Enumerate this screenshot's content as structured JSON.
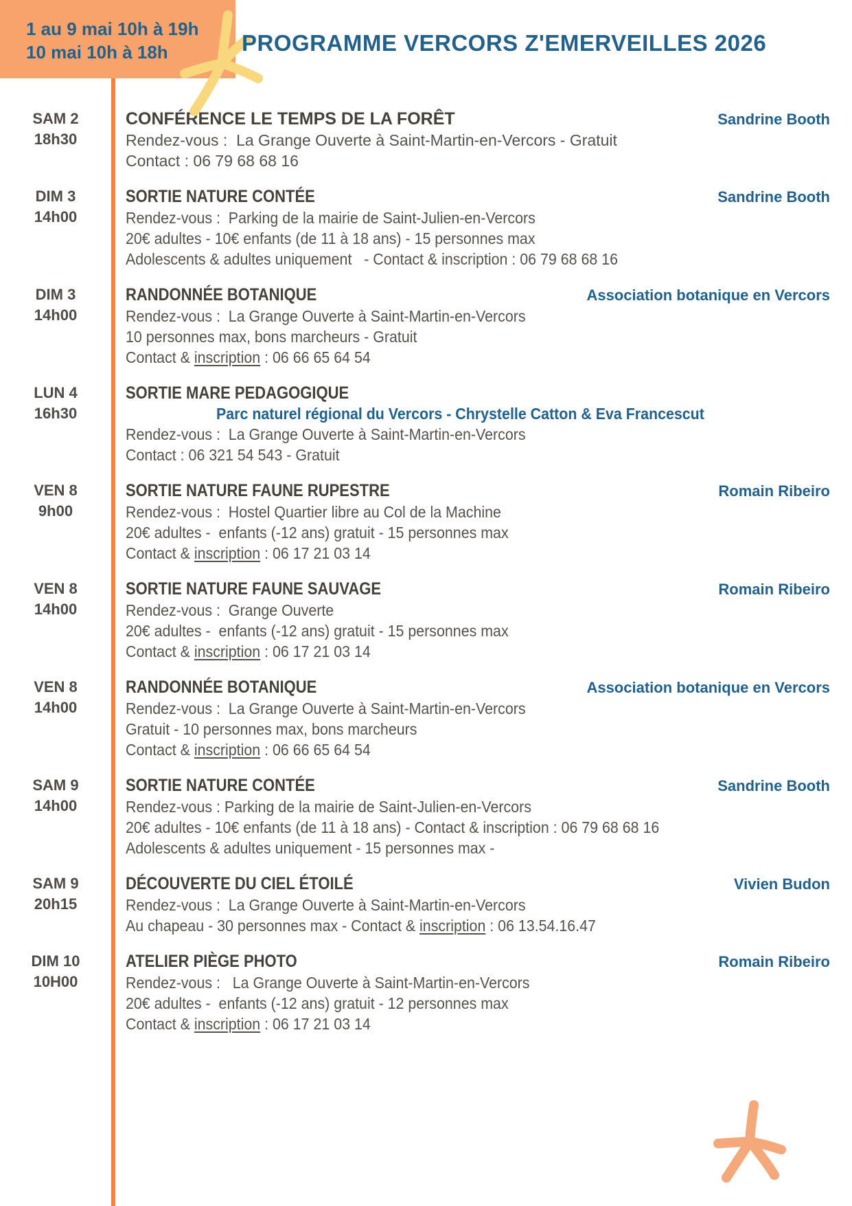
{
  "page": {
    "title": "PROGRAMME VERCORS Z'EMERVEILLES 2026"
  },
  "header": {
    "hours_line1": "1 au  9 mai 10h à 19h",
    "hours_line2": "10 mai 10h à 18h"
  },
  "colors": {
    "accent": "#21618C",
    "box_orange": "#F8A36C",
    "line_orange": "#F5813A",
    "star_yellow": "#F8D77D",
    "star_orange": "#F5A97B",
    "title_dark": "#46403B",
    "body_text": "#57514C",
    "date_text": "#4F4A45"
  },
  "decorations": [
    "star-decoration-yellow",
    "star-decoration-orange"
  ],
  "events": [
    {
      "date": "SAM 2",
      "time": "18h30",
      "title": "CONFÉRENCE LE TEMPS DE LA FORÊT",
      "presenter": "Sandrine Booth",
      "narrow": false,
      "lines": [
        {
          "segments": [
            {
              "text": "Rendez-vous :  La Grange Ouverte à Saint-Martin-en-Vercors - Gratuit"
            }
          ]
        },
        {
          "segments": [
            {
              "text": "Contact : 06 79 68 68 16"
            }
          ]
        }
      ]
    },
    {
      "date": "DIM 3",
      "time": "14h00",
      "title": "SORTIE NATURE CONTÉE",
      "presenter": "Sandrine Booth",
      "narrow": true,
      "lines": [
        {
          "segments": [
            {
              "text": "Rendez-vous :  Parking de la mairie de Saint-Julien-en-Vercors"
            }
          ]
        },
        {
          "segments": [
            {
              "text": "20€ adultes - 10€ enfants (de 11 à 18 ans) - 15 personnes max"
            }
          ]
        },
        {
          "segments": [
            {
              "text": "Adolescents & adultes uniquement   - Contact & inscription : 06 79 68 68 16"
            }
          ]
        }
      ]
    },
    {
      "date": "DIM 3",
      "time": "14h00",
      "title": "RANDONNÉE BOTANIQUE",
      "presenter": "Association botanique en Vercors",
      "narrow": true,
      "lines": [
        {
          "segments": [
            {
              "text": "Rendez-vous :  La Grange Ouverte à Saint-Martin-en-Vercors"
            }
          ]
        },
        {
          "segments": [
            {
              "text": "10 personnes max, bons marcheurs - Gratuit"
            }
          ]
        },
        {
          "segments": [
            {
              "text": "Contact & "
            },
            {
              "text": "inscription",
              "u": true
            },
            {
              "text": " : 06 66 65 64 54"
            }
          ]
        }
      ]
    },
    {
      "date": "LUN 4",
      "time": "16h30",
      "title": "SORTIE MARE PEDAGOGIQUE",
      "presenter": "",
      "narrow": true,
      "lines": [
        {
          "accent": true,
          "indent": true,
          "segments": [
            {
              "text": "Parc naturel régional du Vercors - Chrystelle Catton & Eva Francescut"
            }
          ]
        },
        {
          "segments": [
            {
              "text": "Rendez-vous :  La Grange Ouverte à Saint-Martin-en-Vercors"
            }
          ]
        },
        {
          "segments": [
            {
              "text": "Contact : 06 321 54 543 - Gratuit"
            }
          ]
        }
      ]
    },
    {
      "date": "VEN 8",
      "time": "9h00",
      "title": "SORTIE NATURE FAUNE RUPESTRE",
      "presenter": "Romain Ribeiro",
      "narrow": true,
      "lines": [
        {
          "segments": [
            {
              "text": "Rendez-vous :  Hostel Quartier libre au Col de la Machine"
            }
          ]
        },
        {
          "segments": [
            {
              "text": "20€ adultes -  enfants (-12 ans) gratuit - 15 personnes max"
            }
          ]
        },
        {
          "segments": [
            {
              "text": "Contact & "
            },
            {
              "text": "inscription",
              "u": true
            },
            {
              "text": " : 06 17 21 03 14"
            }
          ]
        }
      ]
    },
    {
      "date": "VEN 8",
      "time": "14h00",
      "title": "SORTIE NATURE FAUNE SAUVAGE",
      "presenter": "Romain Ribeiro",
      "narrow": true,
      "lines": [
        {
          "segments": [
            {
              "text": "Rendez-vous :  Grange Ouverte"
            }
          ]
        },
        {
          "segments": [
            {
              "text": "20€ adultes -  enfants (-12 ans) gratuit - 15 personnes max"
            }
          ]
        },
        {
          "segments": [
            {
              "text": "Contact & "
            },
            {
              "text": "inscription",
              "u": true
            },
            {
              "text": " : 06 17 21 03 14"
            }
          ]
        }
      ]
    },
    {
      "date": "VEN 8",
      "time": "14h00",
      "title": "RANDONNÉE BOTANIQUE",
      "presenter": "Association botanique en Vercors",
      "narrow": true,
      "lines": [
        {
          "segments": [
            {
              "text": "Rendez-vous :  La Grange Ouverte à Saint-Martin-en-Vercors"
            }
          ]
        },
        {
          "segments": [
            {
              "text": "Gratuit - 10 personnes max, bons marcheurs"
            }
          ]
        },
        {
          "segments": [
            {
              "text": "Contact & "
            },
            {
              "text": "inscription",
              "u": true
            },
            {
              "text": " : 06 66 65 64 54"
            }
          ]
        }
      ]
    },
    {
      "date": "SAM 9",
      "time": "14h00",
      "title": "SORTIE NATURE CONTÉE",
      "presenter": "Sandrine Booth",
      "narrow": true,
      "lines": [
        {
          "segments": [
            {
              "text": "Rendez-vous : Parking de la mairie de Saint-Julien-en-Vercors"
            }
          ]
        },
        {
          "segments": [
            {
              "text": "20€ adultes - 10€ enfants (de 11 à 18 ans) - Contact & inscription : 06 79 68 68 16"
            }
          ]
        },
        {
          "segments": [
            {
              "text": "Adolescents & adultes uniquement - 15 personnes max -"
            }
          ]
        }
      ]
    },
    {
      "date": "SAM 9",
      "time": "20h15",
      "title": "DÉCOUVERTE DU CIEL ÉTOILÉ",
      "presenter": "Vivien Budon",
      "narrow": true,
      "lines": [
        {
          "segments": [
            {
              "text": "Rendez-vous :  La Grange Ouverte à Saint-Martin-en-Vercors"
            }
          ]
        },
        {
          "segments": [
            {
              "text": "Au chapeau - 30 personnes max - Contact & "
            },
            {
              "text": "inscription",
              "u": true
            },
            {
              "text": " : 06 13.54.16.47"
            }
          ]
        }
      ]
    },
    {
      "date": "DIM 10",
      "time": "10H00",
      "title": "ATELIER PIÈGE PHOTO",
      "presenter": "Romain Ribeiro",
      "narrow": true,
      "lines": [
        {
          "segments": [
            {
              "text": "Rendez-vous :   La Grange Ouverte à Saint-Martin-en-Vercors"
            }
          ]
        },
        {
          "segments": [
            {
              "text": "20€ adultes -  enfants (-12 ans) gratuit - 12 personnes max"
            }
          ]
        },
        {
          "segments": [
            {
              "text": "Contact & "
            },
            {
              "text": "inscription",
              "u": true
            },
            {
              "text": " : 06 17 21 03 14"
            }
          ]
        }
      ]
    }
  ]
}
